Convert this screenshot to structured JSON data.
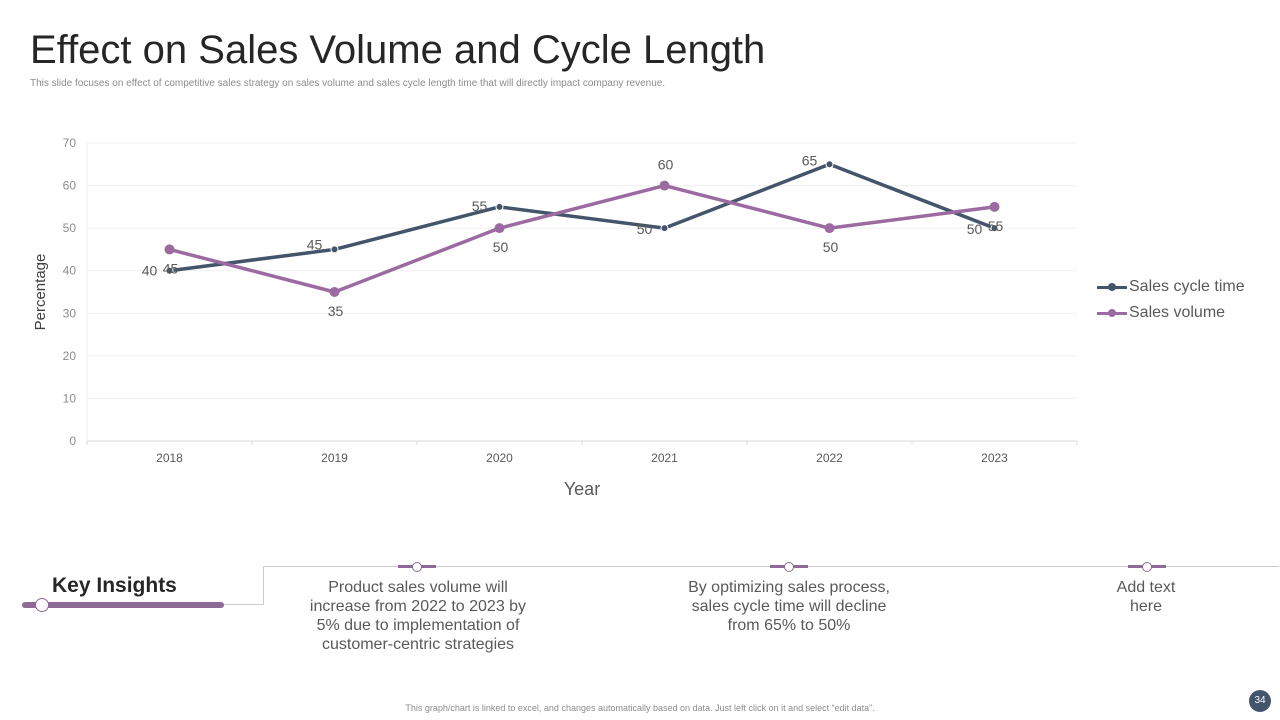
{
  "slide": {
    "title": "Effect on Sales Volume and Cycle Length",
    "subtitle": "This slide focuses on effect of competitive sales strategy on sales volume and sales cycle length time that will directly impact company revenue.",
    "footer_note": "This graph/chart is linked to excel, and changes automatically based on data. Just left click on it and select “edit data”.",
    "page_number": "34"
  },
  "chart_data": {
    "type": "line",
    "categories": [
      "2018",
      "2019",
      "2020",
      "2021",
      "2022",
      "2023"
    ],
    "series": [
      {
        "name": "Sales cycle time",
        "values": [
          40,
          45,
          55,
          50,
          65,
          50
        ],
        "color": "#44546a"
      },
      {
        "name": "Sales volume",
        "values": [
          45,
          35,
          50,
          60,
          50,
          55
        ],
        "color": "#9b6aa0"
      }
    ],
    "xlabel": "Year",
    "ylabel": "Percentage",
    "ylim": [
      0,
      70
    ],
    "yticks": [
      0,
      10,
      20,
      30,
      40,
      50,
      60,
      70
    ],
    "grid": true,
    "legend": "right"
  },
  "insights": {
    "title": "Key Insights",
    "items": [
      "Product sales volume will increase from 2022 to 2023 by 5% due to implementation of customer-centric strategies",
      "By optimizing sales process, sales cycle time will decline from 65% to 50%",
      "Add text here"
    ]
  },
  "colors": {
    "accent": "#8e6a97",
    "dark_blue": "#44546a"
  }
}
